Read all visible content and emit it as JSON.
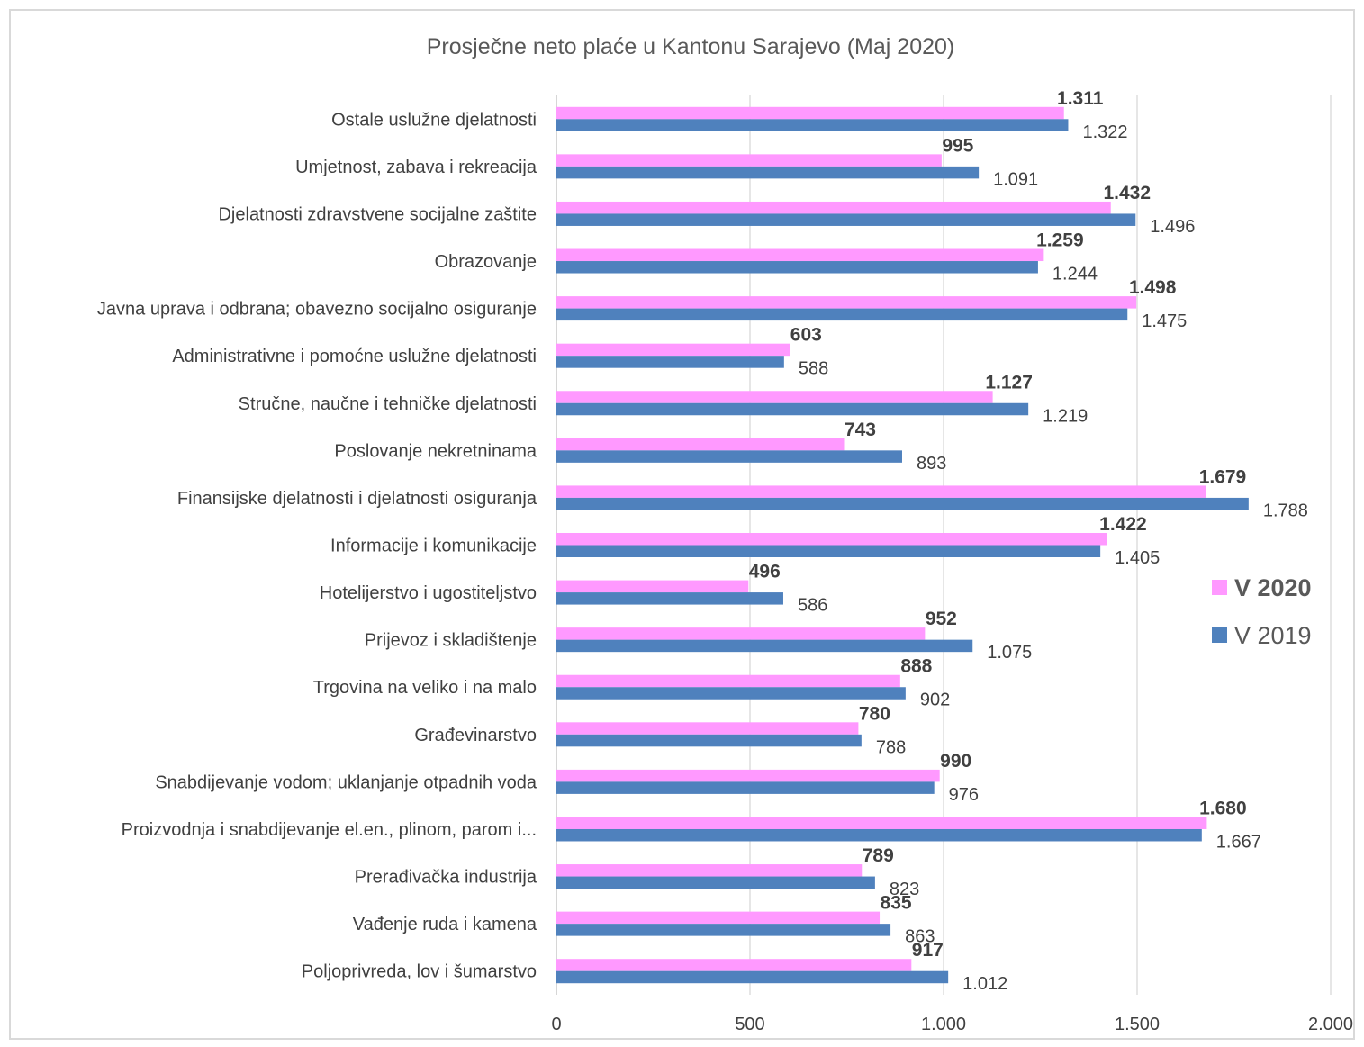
{
  "chart_data": {
    "type": "bar",
    "orientation": "horizontal",
    "title": "Prosječne neto plaće u Kantonu Sarajevo (Maj 2020)",
    "xlabel": "",
    "ylabel": "",
    "xlim": [
      0,
      2000
    ],
    "x_ticks": [
      0,
      500,
      1000,
      1500,
      2000
    ],
    "x_tick_labels": [
      "0",
      "500",
      "1.000",
      "1.500",
      "2.000"
    ],
    "grid": "vertical",
    "legend_position": "right",
    "categories": [
      "Ostale uslužne djelatnosti",
      "Umjetnost, zabava i rekreacija",
      "Djelatnosti zdravstvene socijalne zaštite",
      "Obrazovanje",
      "Javna uprava i odbrana; obavezno socijalno osiguranje",
      "Administrativne i pomoćne uslužne djelatnosti",
      "Stručne, naučne i tehničke djelatnosti",
      "Poslovanje nekretninama",
      "Finansijske djelatnosti i djelatnosti osiguranja",
      "Informacije i komunikacije",
      "Hotelijerstvo i ugostiteljstvo",
      "Prijevoz i skladištenje",
      "Trgovina na veliko i na malo",
      "Građevinarstvo",
      "Snabdijevanje vodom; uklanjanje otpadnih voda",
      "Proizvodnja i snabdijevanje el.en., plinom, parom i...",
      "Prerađivačka industrija",
      "Vađenje ruda i kamena",
      "Poljoprivreda, lov i šumarstvo"
    ],
    "series": [
      {
        "name": "V 2020",
        "color": "#ff99ff",
        "values": [
          1311,
          995,
          1432,
          1259,
          1498,
          603,
          1127,
          743,
          1679,
          1422,
          496,
          952,
          888,
          780,
          990,
          1680,
          789,
          835,
          917
        ],
        "labels": [
          "1.311",
          "995",
          "1.432",
          "1.259",
          "1.498",
          "603",
          "1.127",
          "743",
          "1.679",
          "1.422",
          "496",
          "952",
          "888",
          "780",
          "990",
          "1.680",
          "789",
          "835",
          "917"
        ]
      },
      {
        "name": "V 2019",
        "color": "#4f81bd",
        "values": [
          1322,
          1091,
          1496,
          1244,
          1475,
          588,
          1219,
          893,
          1788,
          1405,
          586,
          1075,
          902,
          788,
          976,
          1667,
          823,
          863,
          1012
        ],
        "labels": [
          "1.322",
          "1.091",
          "1.496",
          "1.244",
          "1.475",
          "588",
          "1.219",
          "893",
          "1.788",
          "1.405",
          "586",
          "1.075",
          "902",
          "788",
          "976",
          "1.667",
          "823",
          "863",
          "1.012"
        ]
      }
    ]
  }
}
